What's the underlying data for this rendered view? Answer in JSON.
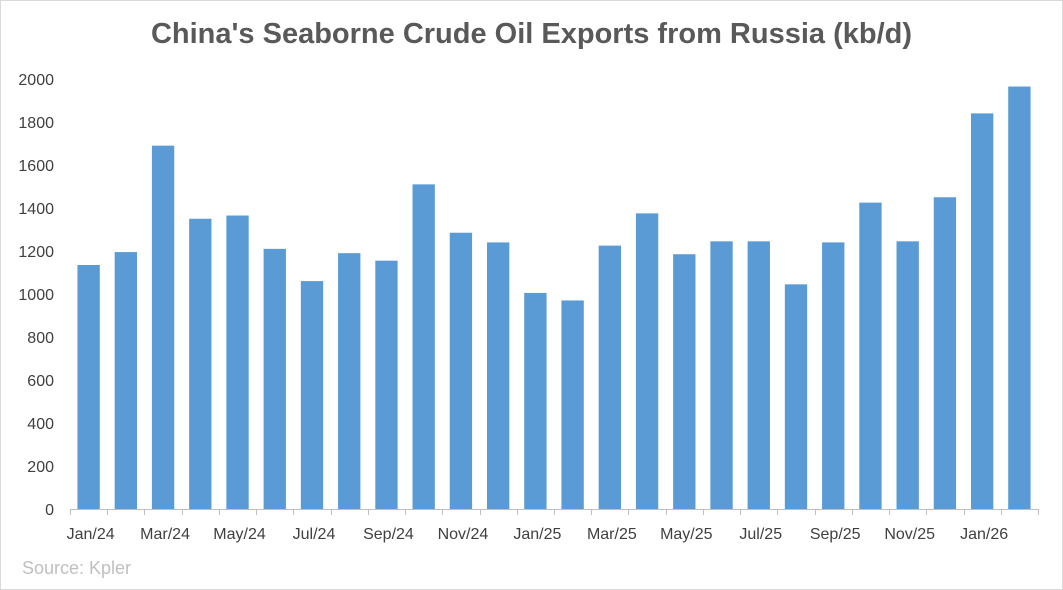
{
  "chart_data": {
    "type": "bar",
    "title": "China's Seaborne Crude Oil Exports from Russia (kb/d)",
    "source": "Source: Kpler",
    "categories": [
      "Jan/24",
      "Feb/24",
      "Mar/24",
      "Apr/24",
      "May/24",
      "Jun/24",
      "Jul/24",
      "Aug/24",
      "Sep/24",
      "Oct/24",
      "Nov/24",
      "Dec/24",
      "Jan/25",
      "Feb/25",
      "Mar/25",
      "Apr/25",
      "May/25",
      "Jun/25",
      "Jul/25",
      "Aug/25",
      "Sep/25",
      "Oct/25",
      "Nov/25",
      "Dec/25",
      "Jan/26",
      "Feb/26"
    ],
    "x_tick_labels": [
      "Jan/24",
      "",
      "Mar/24",
      "",
      "May/24",
      "",
      "Jul/24",
      "",
      "Sep/24",
      "",
      "Nov/24",
      "",
      "Jan/25",
      "",
      "Mar/25",
      "",
      "May/25",
      "",
      "Jul/25",
      "",
      "Sep/25",
      "",
      "Nov/25",
      "",
      "Jan/26",
      ""
    ],
    "values": [
      1135,
      1195,
      1690,
      1350,
      1365,
      1210,
      1060,
      1190,
      1155,
      1510,
      1285,
      1240,
      1005,
      970,
      1225,
      1375,
      1185,
      1245,
      1245,
      1045,
      1240,
      1425,
      1245,
      1450,
      1840,
      1965
    ],
    "ylim": [
      0,
      2000
    ],
    "y_ticks": [
      0,
      200,
      400,
      600,
      800,
      1000,
      1200,
      1400,
      1600,
      1800,
      2000
    ],
    "bar_color": "#5b9bd5",
    "grid": false,
    "xlabel": "",
    "ylabel": ""
  }
}
